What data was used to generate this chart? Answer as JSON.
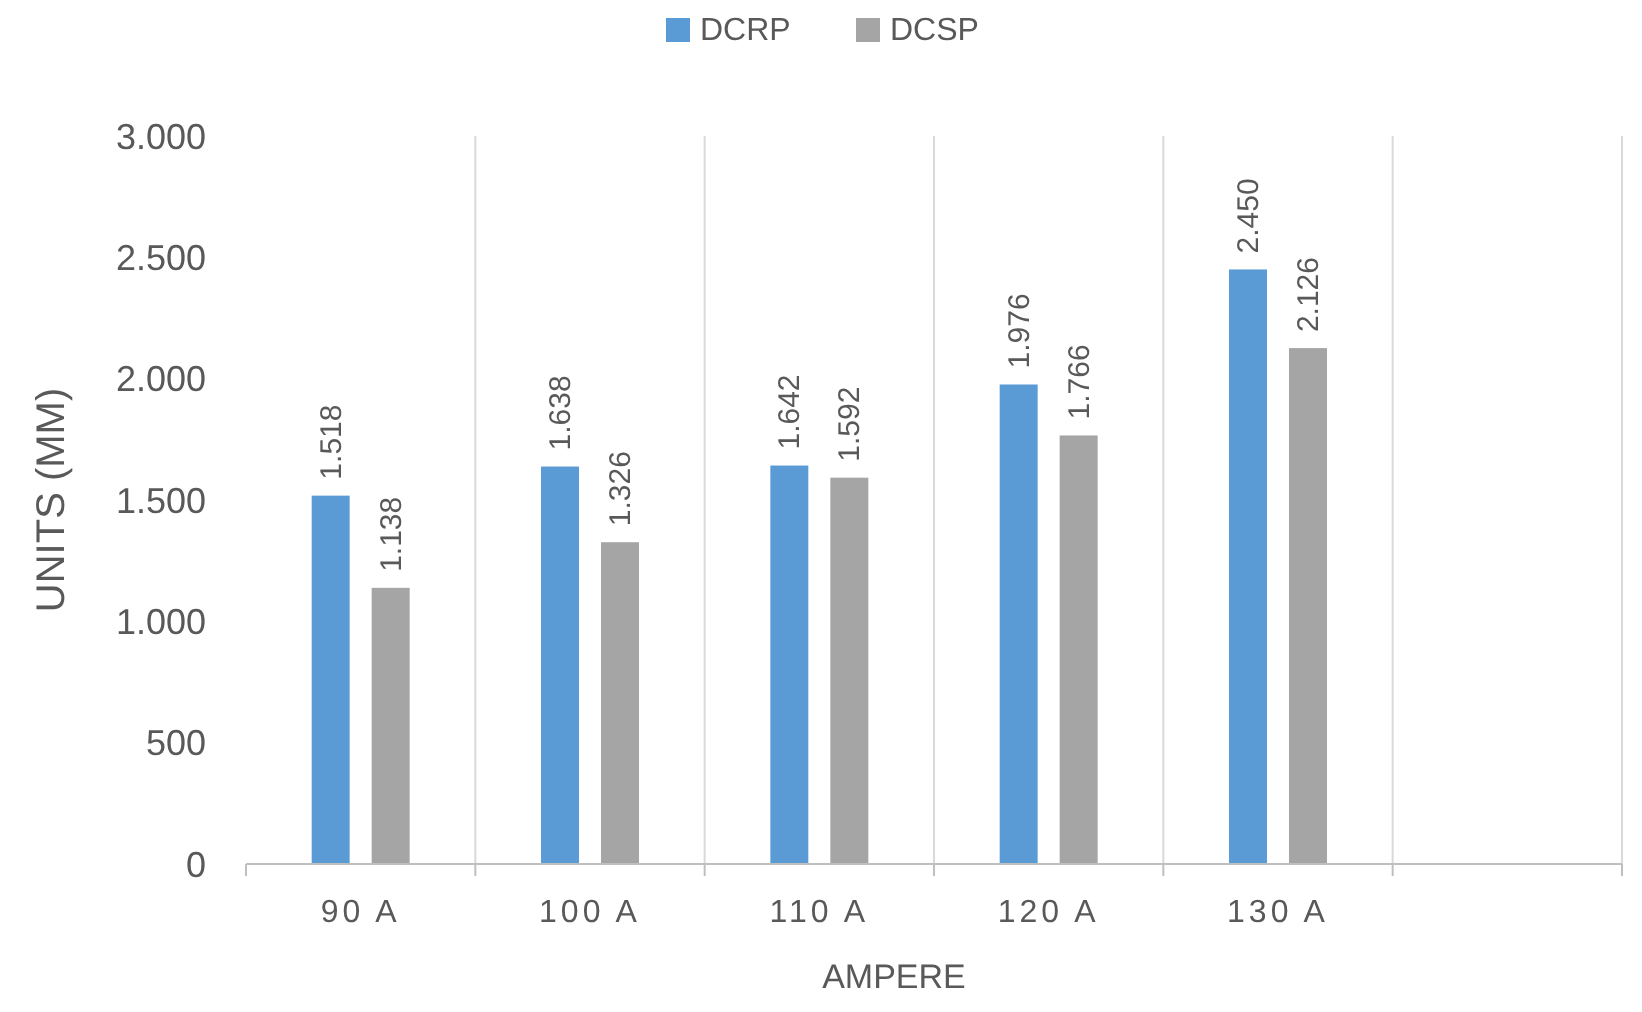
{
  "chart_data": {
    "type": "bar",
    "xlabel": "AMPERE",
    "ylabel": "UNITS (MM)",
    "categories": [
      "90 A",
      "100 A",
      "110 A",
      "120 A",
      "130 A",
      null
    ],
    "series": [
      {
        "name": "DCRP",
        "color": "#5b9bd5",
        "values": [
          1518,
          1638,
          1642,
          1976,
          2450,
          null
        ],
        "value_labels": [
          "1.518",
          "1.638",
          "1.642",
          "1.976",
          "2.450",
          null
        ]
      },
      {
        "name": "DCSP",
        "color": "#a5a5a5",
        "values": [
          1138,
          1326,
          1592,
          1766,
          2126,
          null
        ],
        "value_labels": [
          "1.138",
          "1.326",
          "1.592",
          "1.766",
          "2.126",
          null
        ]
      }
    ],
    "ylim": [
      0,
      3000
    ],
    "yticks": [
      0,
      500,
      {
        "value": 1000,
        "label": "1.000"
      },
      {
        "value": 1500,
        "label": "1.500"
      },
      {
        "value": 2000,
        "label": "2.000"
      },
      {
        "value": 2500,
        "label": "2.500"
      },
      {
        "value": 3000,
        "label": "3.000"
      }
    ],
    "grid": "x",
    "legend": "top"
  }
}
